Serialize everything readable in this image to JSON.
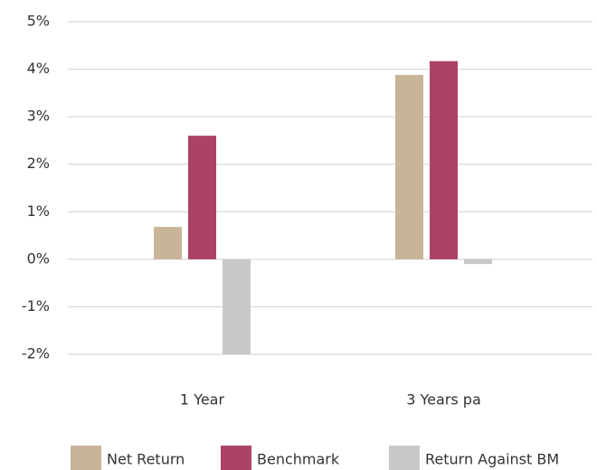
{
  "chart_data": {
    "type": "bar",
    "categories": [
      "1 Year",
      "3 Years pa"
    ],
    "series": [
      {
        "name": "Net Return",
        "color": "#c9b49a",
        "values": [
          0.68,
          3.88
        ]
      },
      {
        "name": "Benchmark",
        "color": "#ac4267",
        "values": [
          2.6,
          4.17
        ]
      },
      {
        "name": "Return Against BM",
        "color": "#c8c8c8",
        "values": [
          -2.0,
          -0.1
        ]
      }
    ],
    "ylim": [
      -2,
      5
    ],
    "yticks": [
      {
        "value": -2,
        "label": "-2%"
      },
      {
        "value": -1,
        "label": "-1%"
      },
      {
        "value": 0,
        "label": "0%"
      },
      {
        "value": 1,
        "label": "1%"
      },
      {
        "value": 2,
        "label": "2%"
      },
      {
        "value": 3,
        "label": "3%"
      },
      {
        "value": 4,
        "label": "4%"
      },
      {
        "value": 5,
        "label": "5%"
      }
    ],
    "grid": true,
    "legend": "bottom"
  }
}
